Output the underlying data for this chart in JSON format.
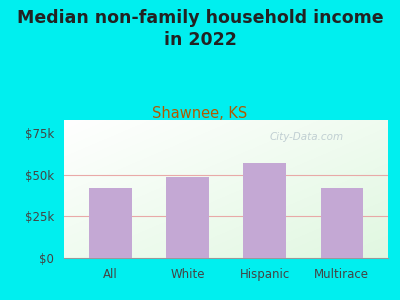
{
  "title": "Median non-family household income\nin 2022",
  "subtitle": "Shawnee, KS",
  "categories": [
    "All",
    "White",
    "Hispanic",
    "Multirace"
  ],
  "values": [
    42000,
    49000,
    57000,
    42000
  ],
  "bar_color": "#c4a8d4",
  "title_fontsize": 12.5,
  "subtitle_fontsize": 10.5,
  "subtitle_color": "#b05a00",
  "title_color": "#222222",
  "bg_outer": "#00efef",
  "yticks": [
    0,
    25000,
    50000,
    75000
  ],
  "ytick_labels": [
    "$0",
    "$25k",
    "$50k",
    "$75k"
  ],
  "ylim": [
    0,
    83000
  ],
  "grid_color": "#e8a0a0",
  "watermark": "City-Data.com"
}
